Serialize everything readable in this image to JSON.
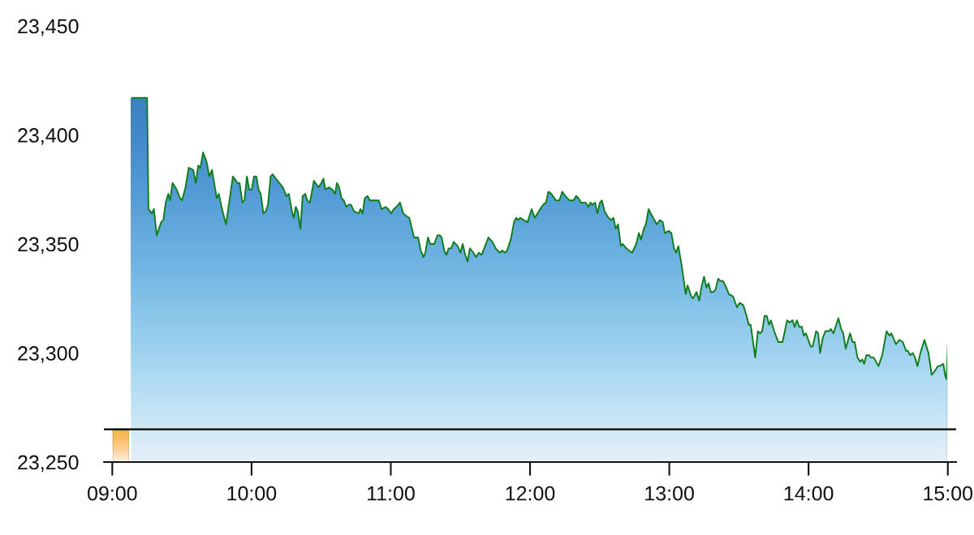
{
  "chart_data": {
    "type": "area",
    "x": [
      9.132,
      9.25,
      9.26,
      9.284,
      9.299,
      9.319,
      9.351,
      9.367,
      9.384,
      9.402,
      9.415,
      9.433,
      9.462,
      9.487,
      9.501,
      9.526,
      9.549,
      9.581,
      9.6,
      9.617,
      9.633,
      9.652,
      9.676,
      9.697,
      9.716,
      9.75,
      9.765,
      9.788,
      9.817,
      9.866,
      9.899,
      9.914,
      9.934,
      9.949,
      9.967,
      9.983,
      10.002,
      10.017,
      10.035,
      10.05,
      10.066,
      10.085,
      10.103,
      10.118,
      10.137,
      10.151,
      10.186,
      10.225,
      10.25,
      10.268,
      10.293,
      10.303,
      10.318,
      10.332,
      10.351,
      10.367,
      10.386,
      10.4,
      10.419,
      10.448,
      10.481,
      10.501,
      10.516,
      10.53,
      10.555,
      10.58,
      10.6,
      10.613,
      10.629,
      10.646,
      10.662,
      10.681,
      10.697,
      10.714,
      10.736,
      10.769,
      10.782,
      10.798,
      10.813,
      10.833,
      10.85,
      10.914,
      10.934,
      10.963,
      10.982,
      11.002,
      11.021,
      11.04,
      11.066,
      11.089,
      11.108,
      11.133,
      11.167,
      11.196,
      11.215,
      11.235,
      11.248,
      11.267,
      11.283,
      11.312,
      11.335,
      11.351,
      11.365,
      11.384,
      11.4,
      11.415,
      11.434,
      11.452,
      11.481,
      11.5,
      11.516,
      11.535,
      11.551,
      11.568,
      11.593,
      11.613,
      11.632,
      11.652,
      11.671,
      11.701,
      11.73,
      11.753,
      11.782,
      11.801,
      11.819,
      11.836,
      11.861,
      11.885,
      11.9,
      11.914,
      11.93,
      11.953,
      11.982,
      12.011,
      12.034,
      12.063,
      12.094,
      12.114,
      12.132,
      12.153,
      12.186,
      12.211,
      12.231,
      12.254,
      12.283,
      12.312,
      12.331,
      12.347,
      12.366,
      12.4,
      12.419,
      12.434,
      12.448,
      12.467,
      12.483,
      12.502,
      12.516,
      12.535,
      12.564,
      12.584,
      12.599,
      12.615,
      12.632,
      12.652,
      12.665,
      12.691,
      12.71,
      12.733,
      12.762,
      12.782,
      12.797,
      12.817,
      12.832,
      12.851,
      12.875,
      12.91,
      12.933,
      12.953,
      12.968,
      12.995,
      13.015,
      13.034,
      13.049,
      13.065,
      13.089,
      13.118,
      13.131,
      13.157,
      13.17,
      13.195,
      13.215,
      13.23,
      13.25,
      13.267,
      13.282,
      13.298,
      13.317,
      13.331,
      13.351,
      13.37,
      13.386,
      13.409,
      13.428,
      13.457,
      13.486,
      13.506,
      13.531,
      13.555,
      13.57,
      13.584,
      13.617,
      13.636,
      13.652,
      13.667,
      13.684,
      13.7,
      13.716,
      13.729,
      13.753,
      13.783,
      13.813,
      13.846,
      13.865,
      13.885,
      13.9,
      13.916,
      13.933,
      13.952,
      13.966,
      13.981,
      14.015,
      14.03,
      14.054,
      14.069,
      14.083,
      14.102,
      14.121,
      14.147,
      14.16,
      14.179,
      14.214,
      14.234,
      14.249,
      14.267,
      14.298,
      14.316,
      14.331,
      14.351,
      14.37,
      14.386,
      14.399,
      14.415,
      14.434,
      14.447,
      14.467,
      14.502,
      14.529,
      14.56,
      14.58,
      14.595,
      14.628,
      14.651,
      14.677,
      14.7,
      14.713,
      14.729,
      14.748,
      14.764,
      14.782,
      14.803,
      14.832,
      14.861,
      14.884,
      14.898,
      14.929,
      14.942,
      14.968,
      14.98,
      14.99,
      15.0
    ],
    "series": [
      {
        "x": [
          9.0,
          9.122
        ],
        "values": [
          23265,
          23265
        ],
        "color": "#f2b84b"
      },
      {
        "color": "#3d80c4",
        "values": [
          23417,
          23417,
          23366,
          23364,
          23366,
          23354,
          23360,
          23361,
          23369,
          23373,
          23370,
          23378,
          23375,
          23371,
          23370,
          23376,
          23385,
          23384,
          23378,
          23386,
          23385,
          23392,
          23388,
          23381,
          23384,
          23371,
          23373,
          23366,
          23359,
          23381,
          23378,
          23378,
          23369,
          23370,
          23381,
          23375,
          23375,
          23381,
          23381,
          23375,
          23373,
          23364,
          23365,
          23368,
          23381,
          23382,
          23379,
          23376,
          23372,
          23373,
          23364,
          23362,
          23367,
          23365,
          23357,
          23372,
          23373,
          23370,
          23369,
          23379,
          23376,
          23378,
          23380,
          23375,
          23376,
          23375,
          23373,
          23378,
          23376,
          23371,
          23370,
          23367,
          23368,
          23368,
          23365,
          23364,
          23366,
          23364,
          23371,
          23372,
          23370,
          23370,
          23366,
          23367,
          23366,
          23364,
          23366,
          23367,
          23369,
          23364,
          23363,
          23362,
          23353,
          23353,
          23347,
          23344,
          23346,
          23353,
          23350,
          23350,
          23354,
          23354,
          23353,
          23347,
          23345,
          23348,
          23348,
          23351,
          23349,
          23346,
          23350,
          23345,
          23342,
          23348,
          23346,
          23344,
          23346,
          23345,
          23348,
          23353,
          23351,
          23348,
          23346,
          23347,
          23346,
          23347,
          23352,
          23360,
          23362,
          23361,
          23362,
          23361,
          23360,
          23366,
          23362,
          23365,
          23368,
          23369,
          23374,
          23373,
          23370,
          23370,
          23374,
          23372,
          23370,
          23370,
          23372,
          23371,
          23369,
          23369,
          23367,
          23369,
          23368,
          23369,
          23364,
          23369,
          23370,
          23365,
          23362,
          23361,
          23362,
          23357,
          23359,
          23349,
          23350,
          23348,
          23347,
          23346,
          23350,
          23355,
          23352,
          23357,
          23359,
          23366,
          23363,
          23359,
          23361,
          23360,
          23355,
          23356,
          23355,
          23348,
          23346,
          23349,
          23340,
          23327,
          23331,
          23326,
          23325,
          23328,
          23324,
          23330,
          23335,
          23330,
          23332,
          23328,
          23328,
          23329,
          23334,
          23333,
          23333,
          23330,
          23327,
          23326,
          23321,
          23323,
          23322,
          23317,
          23313,
          23313,
          23298,
          23310,
          23309,
          23310,
          23317,
          23317,
          23313,
          23315,
          23310,
          23305,
          23305,
          23315,
          23314,
          23315,
          23312,
          23315,
          23312,
          23312,
          23308,
          23309,
          23303,
          23303,
          23310,
          23309,
          23300,
          23307,
          23310,
          23310,
          23311,
          23309,
          23316,
          23311,
          23309,
          23302,
          23309,
          23305,
          23305,
          23298,
          23296,
          23297,
          23295,
          23299,
          23299,
          23298,
          23298,
          23294,
          23299,
          23310,
          23308,
          23309,
          23304,
          23306,
          23305,
          23301,
          23301,
          23299,
          23300,
          23298,
          23294,
          23300,
          23306,
          23300,
          23290,
          23291,
          23294,
          23294,
          23295,
          23290,
          23288,
          23304
        ]
      }
    ],
    "xlim": [
      8.94,
      15.06
    ],
    "ylim": [
      23250,
      23450
    ],
    "xticks": [
      {
        "value": 9,
        "label": "09:00"
      },
      {
        "value": 10,
        "label": "10:00"
      },
      {
        "value": 11,
        "label": "11:00"
      },
      {
        "value": 12,
        "label": "12:00"
      },
      {
        "value": 13,
        "label": "13:00"
      },
      {
        "value": 14,
        "label": "14:00"
      },
      {
        "value": 15,
        "label": "15:00"
      }
    ],
    "yticks": [
      {
        "value": 23250,
        "label": "23,250"
      },
      {
        "value": 23300,
        "label": "23,300"
      },
      {
        "value": 23350,
        "label": "23,350"
      },
      {
        "value": 23400,
        "label": "23,400"
      },
      {
        "value": 23450,
        "label": "23,450"
      }
    ],
    "ref_lines": [
      {
        "axis": "y",
        "value": 23265,
        "color": "#000000"
      }
    ]
  }
}
